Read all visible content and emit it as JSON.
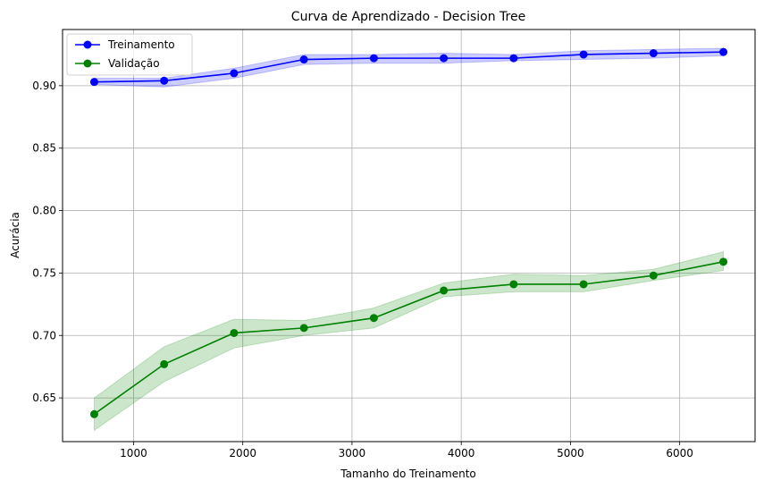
{
  "chart_data": {
    "type": "line",
    "title": "Curva de Aprendizado - Decision Tree",
    "xlabel": "Tamanho do Treinamento",
    "ylabel": "Acurácia",
    "xlim": [
      350,
      6690
    ],
    "ylim": [
      0.615,
      0.945
    ],
    "xticks": [
      1000,
      2000,
      3000,
      4000,
      5000,
      6000
    ],
    "yticks": [
      0.65,
      0.7,
      0.75,
      0.8,
      0.85,
      0.9
    ],
    "ytick_labels": [
      "0.65",
      "0.70",
      "0.75",
      "0.80",
      "0.85",
      "0.90"
    ],
    "grid": true,
    "legend_position": "upper-left",
    "x": [
      640,
      1280,
      1920,
      2560,
      3200,
      3840,
      4480,
      5120,
      5760,
      6400
    ],
    "series": [
      {
        "name": "Treinamento",
        "color": "#0000ff",
        "values": [
          0.903,
          0.904,
          0.91,
          0.921,
          0.922,
          0.922,
          0.922,
          0.925,
          0.926,
          0.927
        ],
        "band_lower": [
          0.901,
          0.899,
          0.906,
          0.917,
          0.918,
          0.918,
          0.92,
          0.921,
          0.922,
          0.924
        ],
        "band_upper": [
          0.906,
          0.906,
          0.914,
          0.925,
          0.925,
          0.926,
          0.925,
          0.928,
          0.929,
          0.93
        ],
        "band_color": "#0000ff"
      },
      {
        "name": "Validação",
        "color": "#008000",
        "values": [
          0.637,
          0.677,
          0.702,
          0.706,
          0.714,
          0.736,
          0.741,
          0.741,
          0.748,
          0.759
        ],
        "band_lower": [
          0.624,
          0.663,
          0.69,
          0.7,
          0.706,
          0.731,
          0.735,
          0.735,
          0.744,
          0.752
        ],
        "band_upper": [
          0.65,
          0.691,
          0.713,
          0.712,
          0.722,
          0.742,
          0.749,
          0.748,
          0.753,
          0.767
        ],
        "band_color": "#008000"
      }
    ]
  }
}
